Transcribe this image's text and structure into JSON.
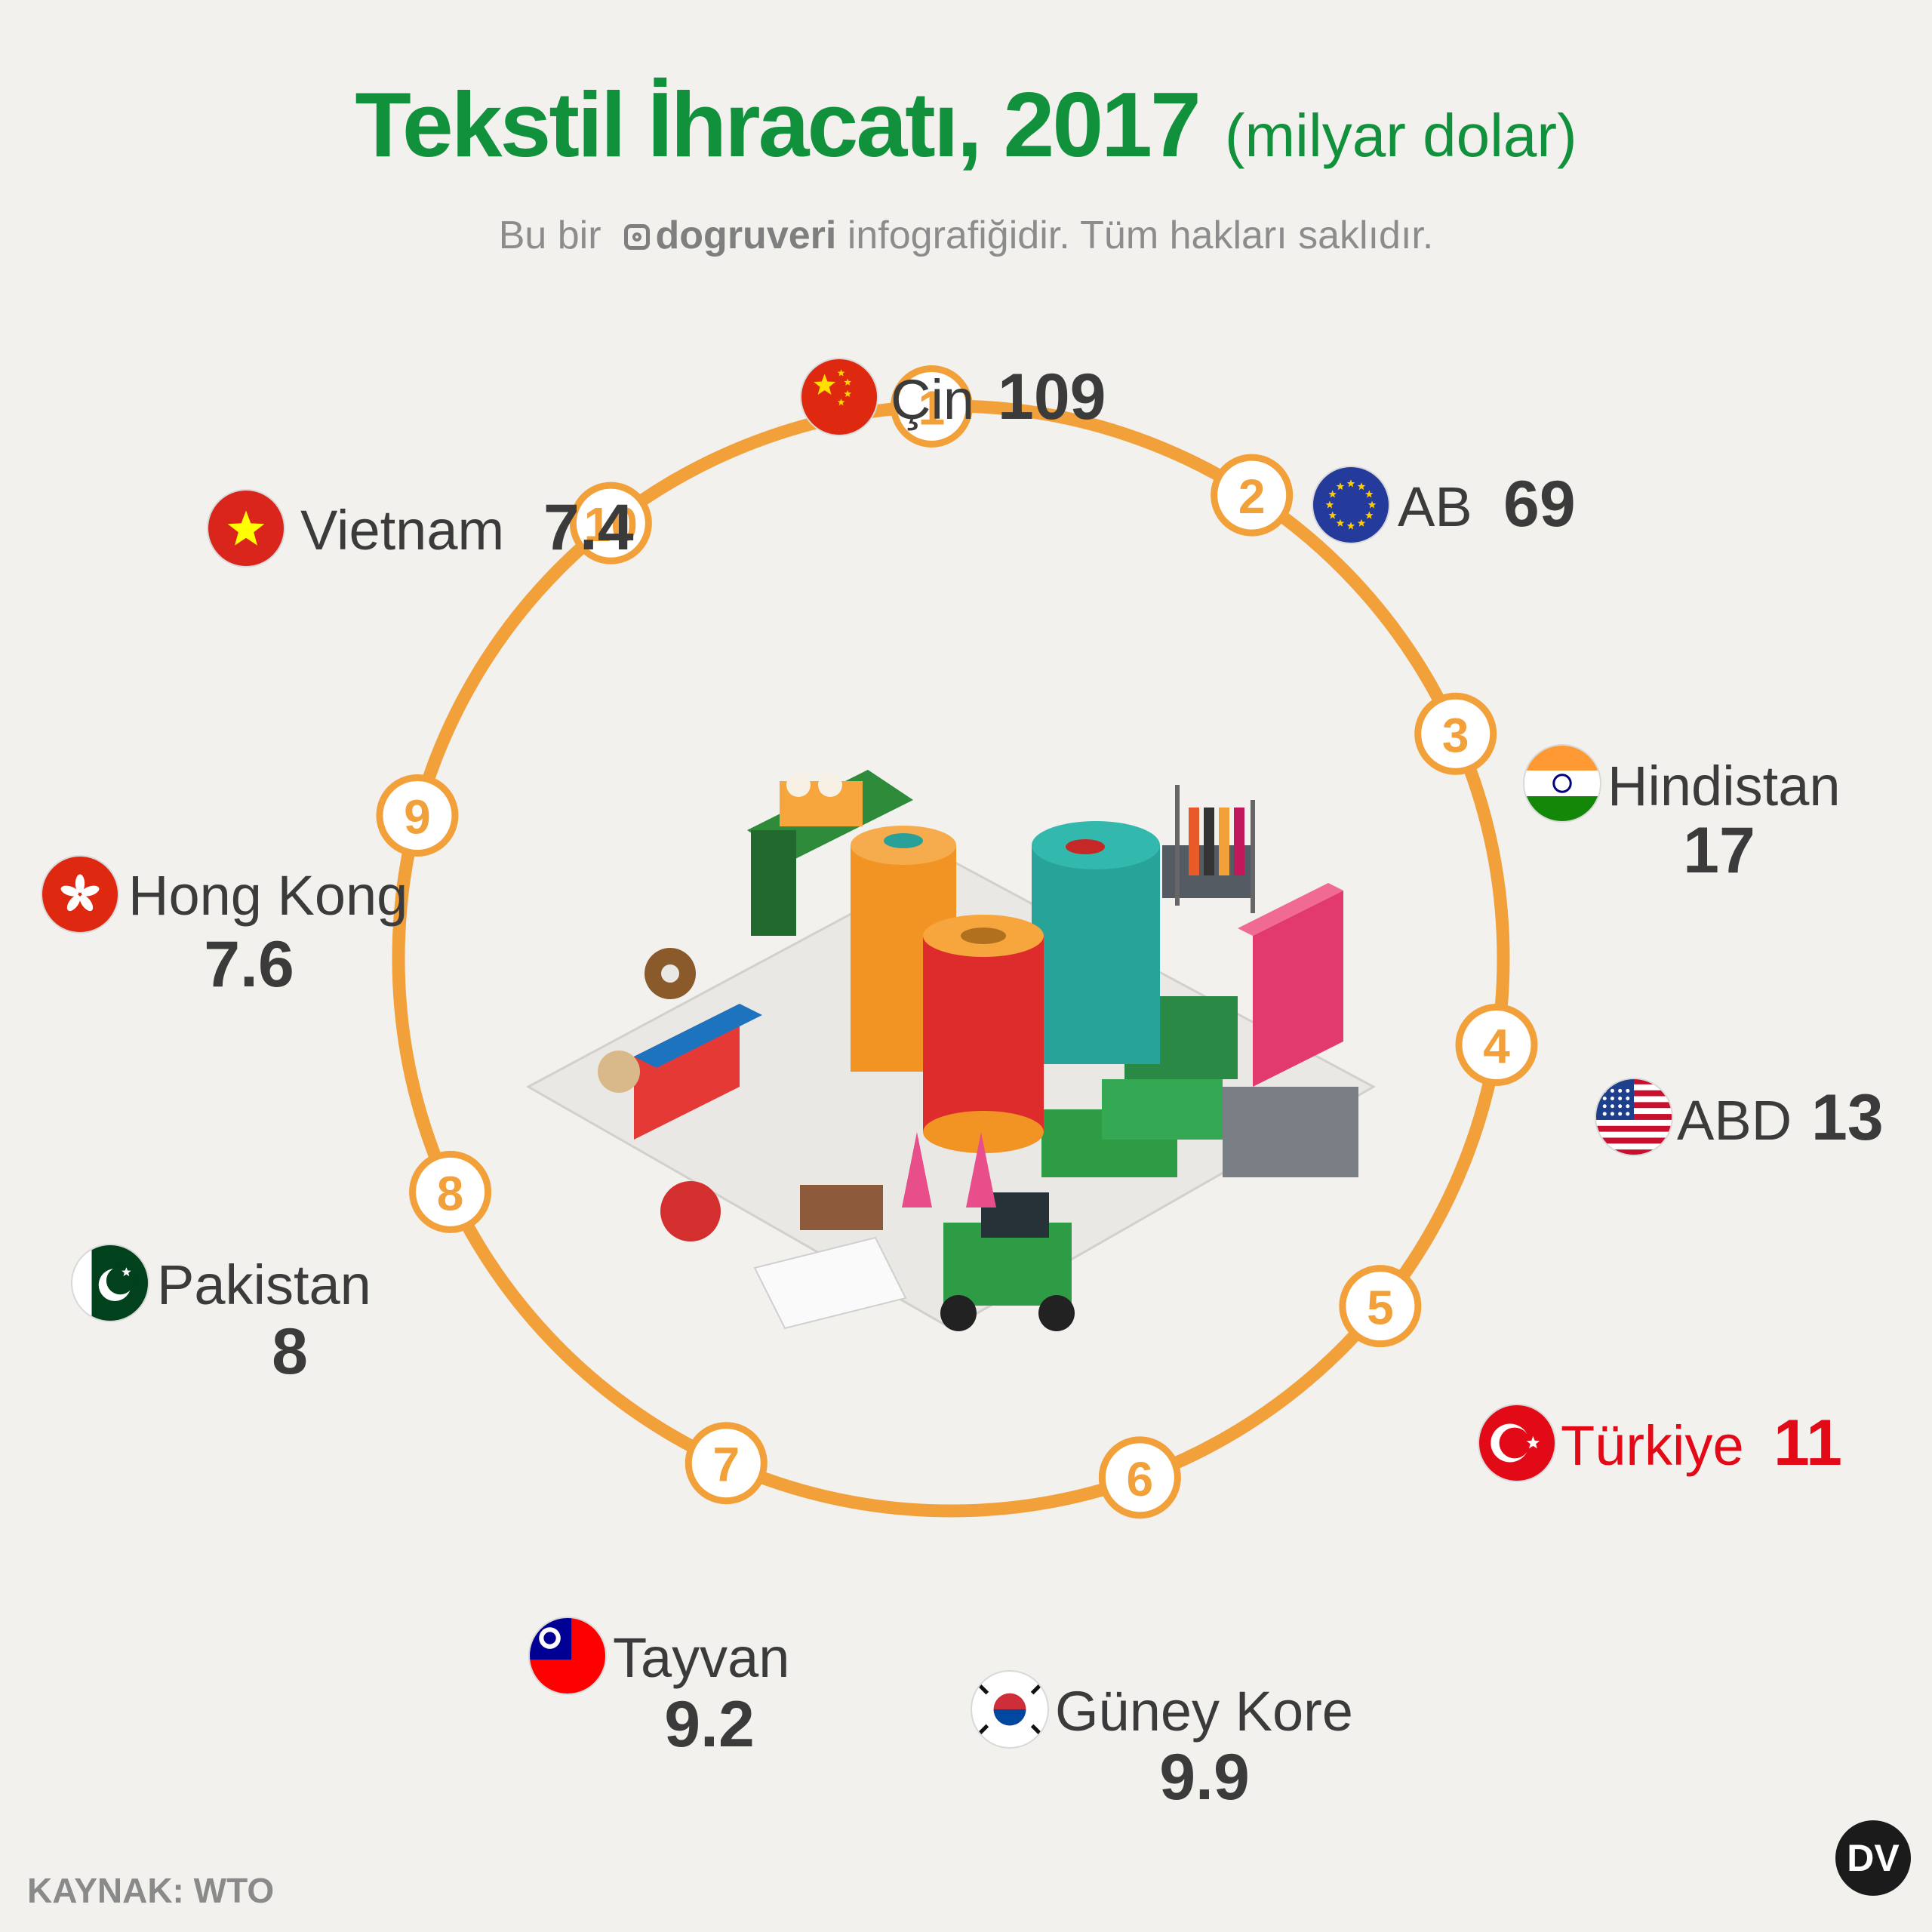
{
  "title": "Tekstil İhracatı, 2017",
  "unit": "(milyar dolar)",
  "credit": {
    "prefix": "Bu bir",
    "brand": "dogruveri",
    "suffix": "infografiğidir. Tüm hakları saklıdır."
  },
  "source": "KAYNAK: WTO",
  "logo_text": "DV",
  "colors": {
    "title": "#12913d",
    "ring": "#f2a03a",
    "highlight": "#e30a17",
    "text": "#3b3b3b"
  },
  "chart_data": {
    "type": "radial-ranking",
    "title": "Tekstil İhracatı, 2017",
    "unit": "milyar dolar",
    "categories": [
      "Çin",
      "AB",
      "Hindistan",
      "ABD",
      "Türkiye",
      "Güney Kore",
      "Tayvan",
      "Pakistan",
      "Hong Kong",
      "Vietnam"
    ],
    "ranks": [
      1,
      2,
      3,
      4,
      5,
      6,
      7,
      8,
      9,
      10
    ],
    "values": [
      109,
      69,
      17,
      13,
      11,
      9.9,
      9.2,
      8,
      7.6,
      7.4
    ],
    "value_labels": [
      "109",
      "69",
      "17",
      "13",
      "11",
      "9.9",
      "9.2",
      "8",
      "7.6",
      "7.4"
    ],
    "flags": [
      "china-flag-icon",
      "eu-flag-icon",
      "india-flag-icon",
      "usa-flag-icon",
      "turkey-flag-icon",
      "south-korea-flag-icon",
      "taiwan-flag-icon",
      "pakistan-flag-icon",
      "hong-kong-flag-icon",
      "vietnam-flag-icon"
    ],
    "highlight": "Türkiye",
    "center_illustration": "textile-factory-illustration"
  }
}
